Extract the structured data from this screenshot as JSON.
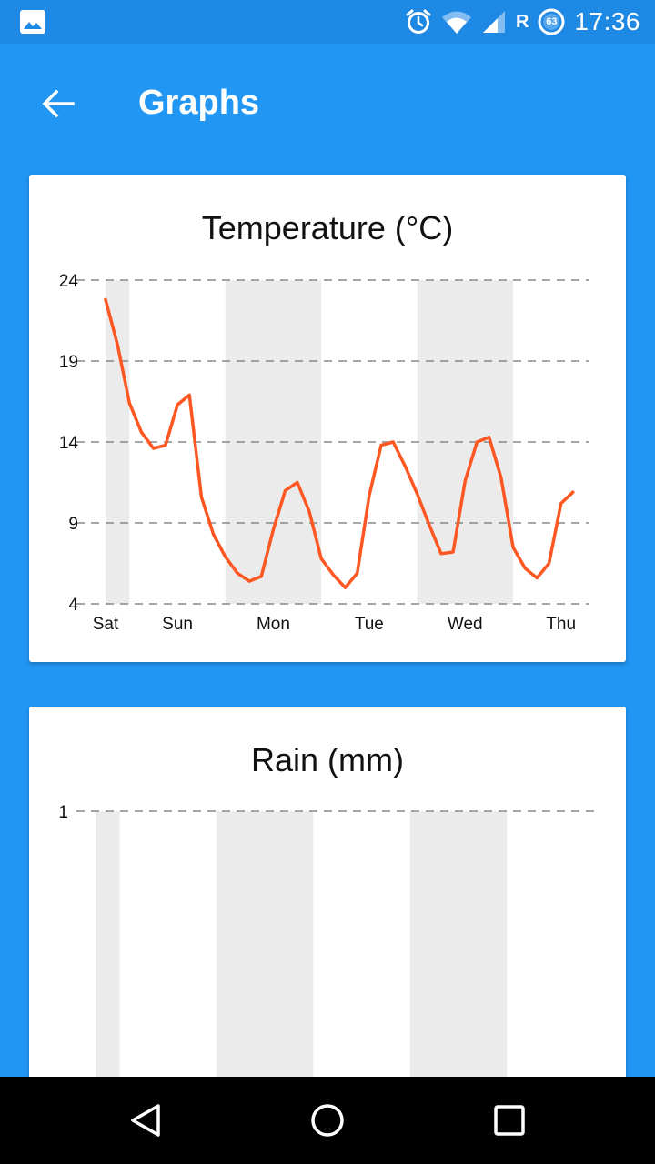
{
  "status_bar": {
    "time": "17:36",
    "battery_level": "63",
    "network_indicator": "R",
    "icons": [
      "image-icon",
      "alarm-icon",
      "wifi-icon",
      "signal-icon",
      "battery-icon"
    ]
  },
  "app_bar": {
    "title": "Graphs",
    "back_icon": "arrow-left-icon"
  },
  "colors": {
    "app_background": "#2196F3",
    "status_bar": "#1E88E5",
    "line": "#FF5722",
    "night_band": "#EBEBEB",
    "grid": "#888888"
  },
  "temperature_card": {
    "title": "Temperature (°C)"
  },
  "rain_card": {
    "title": "Rain (mm)"
  },
  "chart_data": [
    {
      "type": "line",
      "title": "Temperature (°C)",
      "ylim": [
        4,
        24
      ],
      "yticks": [
        "24",
        "19",
        "14",
        "9",
        "4"
      ],
      "grid": "horizontal dashed",
      "x_tick_labels": [
        {
          "label": "Sat",
          "x": 0
        },
        {
          "label": "Sun",
          "x": 1.5
        },
        {
          "label": "Mon",
          "x": 3.5
        },
        {
          "label": "Tue",
          "x": 5.5
        },
        {
          "label": "Wed",
          "x": 7.5
        },
        {
          "label": "Thu",
          "x": 9.5
        }
      ],
      "night_bands": [
        [
          0,
          0.5
        ],
        [
          2.5,
          4.5
        ],
        [
          6.5,
          8.5
        ]
      ],
      "series": [
        {
          "x": [
            0,
            0.25,
            0.5,
            0.75,
            1.0,
            1.25,
            1.5,
            1.75,
            2.0,
            2.25,
            2.5,
            2.75,
            3.0,
            3.25,
            3.5,
            3.75,
            4.0,
            4.25,
            4.5,
            4.75,
            5.0,
            5.25,
            5.5,
            5.75,
            6.0,
            6.25,
            6.5,
            6.75,
            7.0,
            7.25,
            7.5,
            7.75,
            8.0,
            8.25,
            8.5,
            8.75,
            9.0,
            9.25,
            9.5,
            9.75
          ],
          "y": [
            22.8,
            20.0,
            16.4,
            14.6,
            13.6,
            13.8,
            16.3,
            16.9,
            10.6,
            8.3,
            6.9,
            5.9,
            5.4,
            5.7,
            8.6,
            11.0,
            11.5,
            9.7,
            6.8,
            5.8,
            5.0,
            5.9,
            10.7,
            13.8,
            14.0,
            12.5,
            10.8,
            8.9,
            7.1,
            7.2,
            11.6,
            14.0,
            14.3,
            11.8,
            7.5,
            6.2,
            5.6,
            6.5,
            10.2,
            10.9
          ]
        }
      ]
    },
    {
      "type": "bar",
      "title": "Rain (mm)",
      "ylim": [
        0,
        1
      ],
      "yticks": [
        "1"
      ],
      "grid": "horizontal dashed",
      "night_bands": [
        [
          0,
          0.5
        ],
        [
          2.5,
          4.5
        ],
        [
          6.5,
          8.5
        ]
      ],
      "series": []
    }
  ]
}
